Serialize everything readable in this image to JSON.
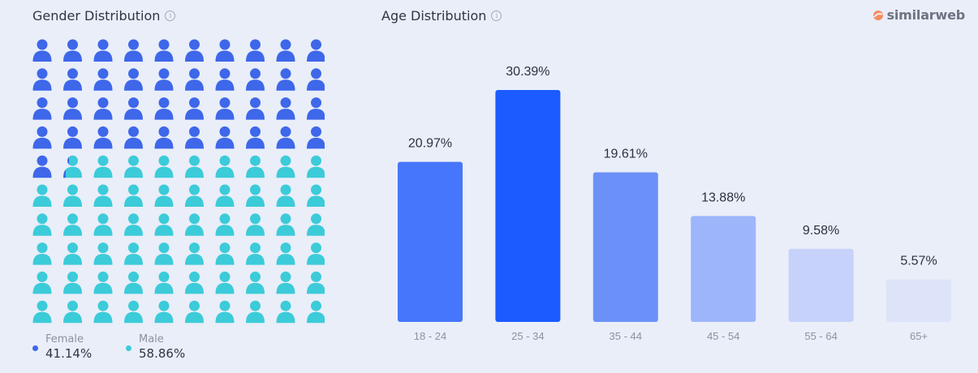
{
  "gender": {
    "title": "Gender Distribution",
    "info_icon": "info-icon",
    "female_label": "Female",
    "female_value": "41.14%",
    "male_label": "Male",
    "male_value": "58.86%",
    "female_color": "#3e67ea",
    "male_color": "#3ccbd9"
  },
  "brand": {
    "name": "similarweb",
    "logo_icon": "similarweb-logo-icon",
    "logo_color": "#f58b5e"
  },
  "age": {
    "title": "Age Distribution",
    "info_icon": "info-icon"
  },
  "chart_data": [
    {
      "type": "bar",
      "title": "Age Distribution",
      "categories": [
        "18 - 24",
        "25 - 34",
        "35 - 44",
        "45 - 54",
        "55 - 64",
        "65+"
      ],
      "values": [
        20.97,
        30.39,
        19.61,
        13.88,
        9.58,
        5.57
      ],
      "data_labels": [
        "20.97%",
        "30.39%",
        "19.61%",
        "13.88%",
        "9.58%",
        "5.57%"
      ],
      "colors": [
        "#4676fb",
        "#1b5bff",
        "#6b91f8",
        "#9db5fb",
        "#c7d2fb",
        "#dde3f8"
      ],
      "ylim": [
        0,
        35
      ],
      "grid": false
    },
    {
      "type": "pictogram",
      "title": "Gender Distribution",
      "categories": [
        "Female",
        "Male"
      ],
      "values": [
        41.14,
        58.86
      ],
      "total_icons": 100,
      "colors": [
        "#3e67ea",
        "#3ccbd9"
      ]
    }
  ]
}
